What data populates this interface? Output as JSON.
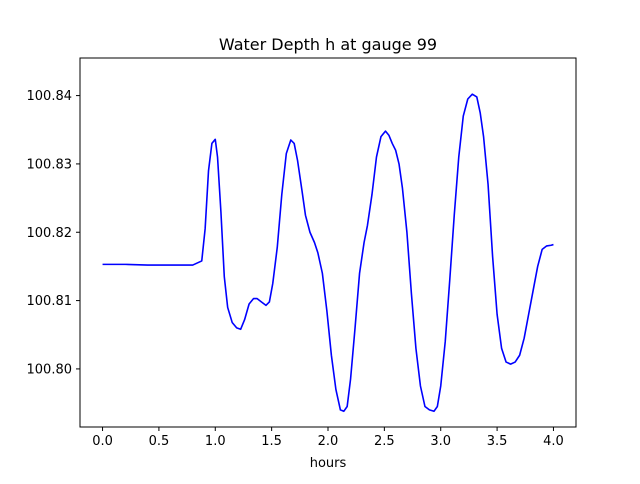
{
  "chart_data": {
    "type": "line",
    "title": "Water Depth h at gauge 99",
    "xlabel": "hours",
    "ylabel": "",
    "xlim": [
      -0.2,
      4.2
    ],
    "ylim": [
      100.7915,
      100.8455
    ],
    "xticks": [
      0.0,
      0.5,
      1.0,
      1.5,
      2.0,
      2.5,
      3.0,
      3.5,
      4.0
    ],
    "xtick_labels": [
      "0.0",
      "0.5",
      "1.0",
      "1.5",
      "2.0",
      "2.5",
      "3.0",
      "3.5",
      "4.0"
    ],
    "yticks": [
      100.8,
      100.81,
      100.82,
      100.83,
      100.84
    ],
    "ytick_labels": [
      "100.80",
      "100.81",
      "100.82",
      "100.83",
      "100.84"
    ],
    "grid": false,
    "line_color": "#0000ff",
    "series": [
      {
        "x": [
          0.0,
          0.2,
          0.4,
          0.6,
          0.8,
          0.88,
          0.91,
          0.94,
          0.97,
          1.0,
          1.02,
          1.05,
          1.08,
          1.11,
          1.15,
          1.19,
          1.225,
          1.26,
          1.3,
          1.34,
          1.37,
          1.41,
          1.45,
          1.48,
          1.51,
          1.55,
          1.59,
          1.63,
          1.67,
          1.7,
          1.73,
          1.77,
          1.8,
          1.84,
          1.88,
          1.91,
          1.95,
          1.99,
          2.03,
          2.07,
          2.11,
          2.14,
          2.17,
          2.2,
          2.24,
          2.28,
          2.32,
          2.35,
          2.39,
          2.43,
          2.47,
          2.51,
          2.54,
          2.57,
          2.6,
          2.63,
          2.66,
          2.7,
          2.74,
          2.78,
          2.82,
          2.86,
          2.9,
          2.94,
          2.97,
          3.0,
          3.04,
          3.08,
          3.12,
          3.16,
          3.2,
          3.24,
          3.28,
          3.32,
          3.35,
          3.38,
          3.42,
          3.46,
          3.5,
          3.54,
          3.58,
          3.62,
          3.66,
          3.7,
          3.74,
          3.78,
          3.82,
          3.86,
          3.9,
          3.94,
          3.98,
          4.0
        ],
        "y": [
          100.8153,
          100.8153,
          100.8152,
          100.8152,
          100.8152,
          100.8158,
          100.8205,
          100.829,
          100.833,
          100.8336,
          100.831,
          100.823,
          100.8135,
          100.809,
          100.8068,
          100.806,
          100.8058,
          100.8072,
          100.8095,
          100.8103,
          100.8103,
          100.8098,
          100.8093,
          100.8098,
          100.8125,
          100.8178,
          100.8255,
          100.8315,
          100.8335,
          100.833,
          100.8305,
          100.826,
          100.8225,
          100.82,
          100.8185,
          100.817,
          100.814,
          100.8085,
          100.802,
          100.797,
          100.794,
          100.7938,
          100.7945,
          100.7985,
          100.806,
          100.814,
          100.8185,
          100.821,
          100.8255,
          100.831,
          100.834,
          100.8348,
          100.8342,
          100.833,
          100.832,
          100.83,
          100.8265,
          100.82,
          100.811,
          100.803,
          100.7975,
          100.7945,
          100.794,
          100.7938,
          100.7945,
          100.7975,
          100.804,
          100.813,
          100.8225,
          100.831,
          100.837,
          100.8395,
          100.8402,
          100.8398,
          100.8375,
          100.834,
          100.827,
          100.8165,
          100.808,
          100.803,
          100.801,
          100.8007,
          100.801,
          100.802,
          100.8045,
          100.808,
          100.8115,
          100.815,
          100.8175,
          100.818,
          100.8181,
          100.8182
        ]
      }
    ]
  }
}
